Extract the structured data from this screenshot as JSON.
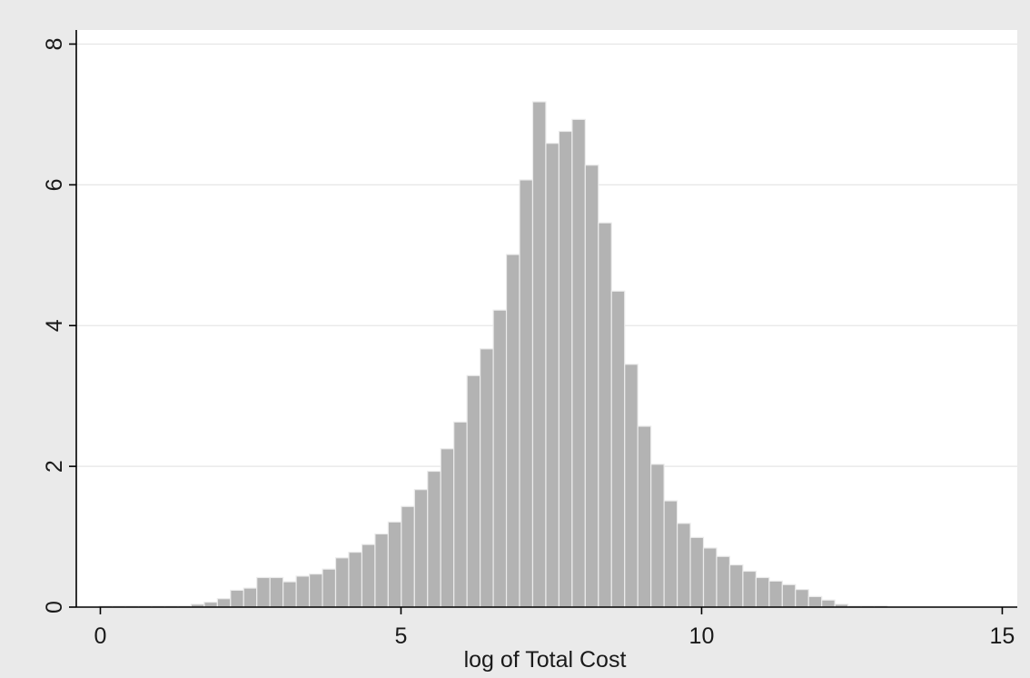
{
  "chart_data": {
    "type": "bar",
    "title": "",
    "xlabel": "log of Total Cost",
    "ylabel": "",
    "xlim": [
      -0.4,
      15.25
    ],
    "ylim": [
      0,
      8.2
    ],
    "x_ticks": [
      "0",
      "5",
      "10",
      "15"
    ],
    "x_tick_values": [
      0,
      5,
      10,
      15
    ],
    "y_ticks": [
      "0",
      "2",
      "4",
      "6",
      "8"
    ],
    "y_tick_values": [
      0,
      2,
      4,
      6,
      8
    ],
    "grid": true,
    "bin_start": -0.02,
    "bin_width": 0.2185,
    "values": [
      0.02,
      0.02,
      0.02,
      0.02,
      0.02,
      0.02,
      0.02,
      0.04,
      0.07,
      0.12,
      0.24,
      0.27,
      0.42,
      0.42,
      0.36,
      0.44,
      0.47,
      0.54,
      0.7,
      0.78,
      0.89,
      1.04,
      1.21,
      1.43,
      1.67,
      1.93,
      2.25,
      2.63,
      3.29,
      3.67,
      4.22,
      5.01,
      6.07,
      7.18,
      6.59,
      6.76,
      6.93,
      6.28,
      5.46,
      4.49,
      3.45,
      2.57,
      2.03,
      1.51,
      1.19,
      0.99,
      0.84,
      0.72,
      0.6,
      0.51,
      0.42,
      0.37,
      0.32,
      0.25,
      0.15,
      0.1,
      0.04,
      0.02,
      0.02,
      0.02
    ]
  },
  "colors": {
    "background": "#eaeaea",
    "plot_area": "#ffffff",
    "bar_fill": "#b3b3b3",
    "bar_stroke": "#ebebeb",
    "grid": "#e6e6e6",
    "axis": "#000000"
  }
}
